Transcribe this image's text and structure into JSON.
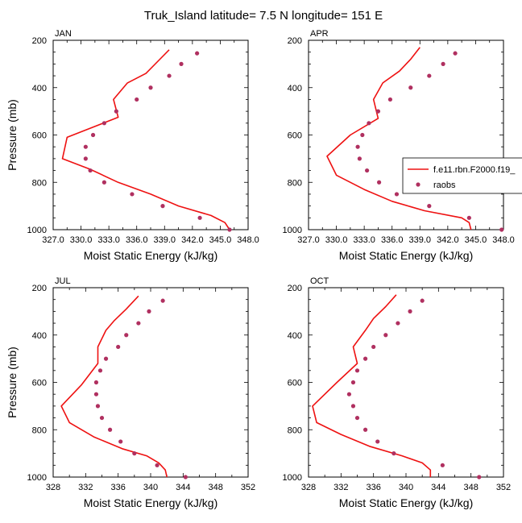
{
  "title": "Truk_Island  latitude= 7.5 N longitude= 151 E",
  "colors": {
    "model": "#ee1111",
    "obs": "#b03060",
    "axis": "#000000"
  },
  "legend": {
    "panel": "APR",
    "placement": "right",
    "entries": [
      {
        "label": "f.e11.rbn.F2000.f19_",
        "kind": "line"
      },
      {
        "label": "raobs",
        "kind": "marker"
      }
    ]
  },
  "chart_data": [
    {
      "type": "line",
      "panel": "JAN",
      "title": "JAN",
      "xlabel": "Moist Static Energy (kJ/kg)",
      "ylabel": "Pressure (mb)",
      "xlim": [
        327.0,
        348.0
      ],
      "ylim": [
        1000,
        200
      ],
      "yreversed": true,
      "xticks": [
        "327.0",
        "330.0",
        "333.0",
        "336.0",
        "339.0",
        "342.0",
        "345.0",
        "348.0"
      ],
      "yticks": [
        "200",
        "400",
        "600",
        "800",
        "1000"
      ],
      "series": [
        {
          "name": "f.e11.rbn.F2000.f19_",
          "style": "line",
          "points": [
            [
              339.5,
              240
            ],
            [
              338.5,
              280
            ],
            [
              337.0,
              340
            ],
            [
              335.0,
              380
            ],
            [
              333.5,
              450
            ],
            [
              334.0,
              525
            ],
            [
              328.5,
              610
            ],
            [
              328.0,
              700
            ],
            [
              331.0,
              745
            ],
            [
              334.0,
              800
            ],
            [
              337.5,
              850
            ],
            [
              340.5,
              900
            ],
            [
              344.0,
              940
            ],
            [
              345.5,
              970
            ],
            [
              346.0,
              1000
            ]
          ]
        },
        {
          "name": "raobs",
          "style": "markers",
          "points": [
            [
              342.5,
              255
            ],
            [
              340.8,
              300
            ],
            [
              339.5,
              350
            ],
            [
              337.5,
              400
            ],
            [
              336.0,
              450
            ],
            [
              333.8,
              500
            ],
            [
              332.5,
              550
            ],
            [
              331.3,
              600
            ],
            [
              330.5,
              650
            ],
            [
              330.5,
              700
            ],
            [
              331.0,
              750
            ],
            [
              332.5,
              800
            ],
            [
              335.5,
              850
            ],
            [
              338.8,
              900
            ],
            [
              342.8,
              950
            ],
            [
              346.0,
              1000
            ]
          ]
        }
      ]
    },
    {
      "type": "line",
      "panel": "APR",
      "title": "APR",
      "xlabel": "Moist Static Energy (kJ/kg)",
      "ylabel": "",
      "xlim": [
        327.0,
        348.0
      ],
      "ylim": [
        1000,
        200
      ],
      "yreversed": true,
      "xticks": [
        "327.0",
        "330.0",
        "333.0",
        "336.0",
        "339.0",
        "342.0",
        "345.0",
        "348.0"
      ],
      "yticks": [
        "200",
        "400",
        "600",
        "800",
        "1000"
      ],
      "series": [
        {
          "name": "f.e11.rbn.F2000.f19_",
          "style": "line",
          "points": [
            [
              339.0,
              230
            ],
            [
              338.0,
              280
            ],
            [
              336.8,
              330
            ],
            [
              335.0,
              380
            ],
            [
              334.0,
              450
            ],
            [
              334.5,
              530
            ],
            [
              331.5,
              600
            ],
            [
              329.0,
              690
            ],
            [
              330.0,
              770
            ],
            [
              333.0,
              830
            ],
            [
              336.0,
              880
            ],
            [
              339.5,
              920
            ],
            [
              343.5,
              950
            ],
            [
              344.3,
              970
            ],
            [
              344.5,
              1000
            ]
          ]
        },
        {
          "name": "raobs",
          "style": "markers",
          "points": [
            [
              342.8,
              255
            ],
            [
              341.5,
              300
            ],
            [
              340.0,
              350
            ],
            [
              338.0,
              400
            ],
            [
              335.8,
              450
            ],
            [
              334.5,
              500
            ],
            [
              333.5,
              550
            ],
            [
              332.8,
              600
            ],
            [
              332.3,
              650
            ],
            [
              332.5,
              700
            ],
            [
              333.3,
              750
            ],
            [
              334.6,
              800
            ],
            [
              336.5,
              850
            ],
            [
              340.0,
              900
            ],
            [
              344.3,
              950
            ],
            [
              347.8,
              1000
            ]
          ]
        }
      ]
    },
    {
      "type": "line",
      "panel": "JUL",
      "title": "JUL",
      "xlabel": "Moist Static Energy (kJ/kg)",
      "ylabel": "Pressure (mb)",
      "xlim": [
        328,
        352
      ],
      "ylim": [
        1000,
        200
      ],
      "yreversed": true,
      "xticks": [
        "328",
        "332",
        "336",
        "340",
        "344",
        "348",
        "352"
      ],
      "yticks": [
        "200",
        "400",
        "600",
        "800",
        "1000"
      ],
      "series": [
        {
          "name": "f.e11.rbn.F2000.f19_",
          "style": "line",
          "points": [
            [
              338.5,
              235
            ],
            [
              337.0,
              290
            ],
            [
              335.5,
              340
            ],
            [
              334.5,
              380
            ],
            [
              333.5,
              450
            ],
            [
              333.5,
              520
            ],
            [
              331.5,
              610
            ],
            [
              329.0,
              700
            ],
            [
              330.0,
              770
            ],
            [
              333.0,
              830
            ],
            [
              336.5,
              880
            ],
            [
              339.5,
              910
            ],
            [
              341.0,
              940
            ],
            [
              341.8,
              970
            ],
            [
              342.0,
              1000
            ]
          ]
        },
        {
          "name": "raobs",
          "style": "markers",
          "points": [
            [
              341.5,
              255
            ],
            [
              339.8,
              300
            ],
            [
              338.5,
              350
            ],
            [
              337.0,
              400
            ],
            [
              336.0,
              450
            ],
            [
              334.5,
              500
            ],
            [
              333.8,
              550
            ],
            [
              333.3,
              600
            ],
            [
              333.3,
              650
            ],
            [
              333.5,
              700
            ],
            [
              334.0,
              750
            ],
            [
              335.0,
              800
            ],
            [
              336.3,
              850
            ],
            [
              338.0,
              900
            ],
            [
              340.8,
              950
            ],
            [
              344.3,
              1000
            ]
          ]
        }
      ]
    },
    {
      "type": "line",
      "panel": "OCT",
      "title": "OCT",
      "xlabel": "Moist Static Energy (kJ/kg)",
      "ylabel": "",
      "xlim": [
        328,
        352
      ],
      "ylim": [
        1000,
        200
      ],
      "yreversed": true,
      "xticks": [
        "328",
        "332",
        "336",
        "340",
        "344",
        "348",
        "352"
      ],
      "yticks": [
        "200",
        "400",
        "600",
        "800",
        "1000"
      ],
      "series": [
        {
          "name": "f.e11.rbn.F2000.f19_",
          "style": "line",
          "points": [
            [
              338.8,
              230
            ],
            [
              337.5,
              280
            ],
            [
              336.0,
              330
            ],
            [
              335.0,
              380
            ],
            [
              333.5,
              450
            ],
            [
              334.0,
              520
            ],
            [
              331.5,
              600
            ],
            [
              328.5,
              700
            ],
            [
              329.0,
              770
            ],
            [
              332.0,
              820
            ],
            [
              335.5,
              870
            ],
            [
              339.5,
              910
            ],
            [
              342.0,
              940
            ],
            [
              343.0,
              970
            ],
            [
              343.0,
              1000
            ]
          ]
        },
        {
          "name": "raobs",
          "style": "markers",
          "points": [
            [
              342.0,
              255
            ],
            [
              340.5,
              300
            ],
            [
              339.0,
              350
            ],
            [
              337.5,
              400
            ],
            [
              336.0,
              450
            ],
            [
              335.0,
              500
            ],
            [
              334.0,
              550
            ],
            [
              333.5,
              600
            ],
            [
              333.0,
              650
            ],
            [
              333.5,
              700
            ],
            [
              334.0,
              750
            ],
            [
              335.0,
              800
            ],
            [
              336.5,
              850
            ],
            [
              338.5,
              900
            ],
            [
              344.5,
              950
            ],
            [
              349.0,
              1000
            ]
          ]
        }
      ]
    }
  ]
}
